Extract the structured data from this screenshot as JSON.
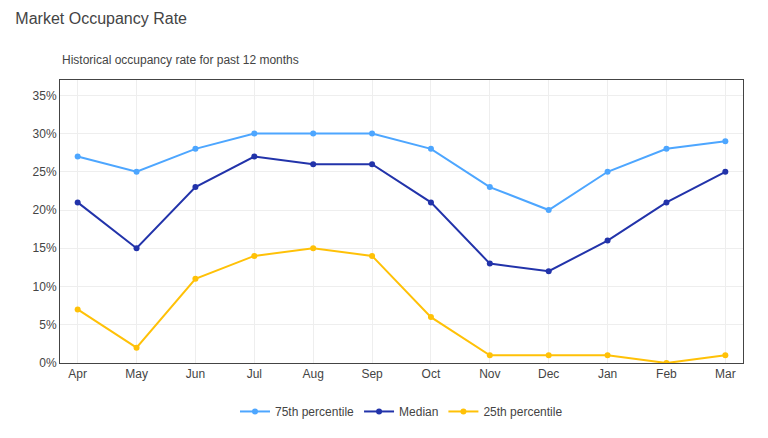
{
  "chart_data": {
    "type": "line",
    "title": "Market Occupancy Rate",
    "subtitle": "Historical occupancy rate for past 12 months",
    "categories": [
      "Apr",
      "May",
      "Jun",
      "Jul",
      "Aug",
      "Sep",
      "Oct",
      "Nov",
      "Dec",
      "Jan",
      "Feb",
      "Mar"
    ],
    "series": [
      {
        "name": "75th percentile",
        "color": "#4da6ff",
        "values": [
          27,
          25,
          28,
          30,
          30,
          30,
          28,
          23,
          20,
          25,
          28,
          29
        ]
      },
      {
        "name": "Median",
        "color": "#2233aa",
        "values": [
          21,
          15,
          23,
          27,
          26,
          26,
          21,
          13,
          12,
          16,
          21,
          25
        ]
      },
      {
        "name": "25th percentile",
        "color": "#FFC107",
        "values": [
          7,
          2,
          11,
          14,
          15,
          14,
          6,
          1,
          1,
          1,
          0,
          1
        ]
      }
    ],
    "ylim": [
      0,
      37
    ],
    "yticks": [
      {
        "value": 0,
        "label": "0%"
      },
      {
        "value": 5,
        "label": "5%"
      },
      {
        "value": 10,
        "label": "10%"
      },
      {
        "value": 15,
        "label": "15%"
      },
      {
        "value": 20,
        "label": "20%"
      },
      {
        "value": 25,
        "label": "25%"
      },
      {
        "value": 30,
        "label": "30%"
      },
      {
        "value": 35,
        "label": "35%"
      }
    ],
    "grid": true,
    "legend": "bottom",
    "marker": "circle"
  }
}
